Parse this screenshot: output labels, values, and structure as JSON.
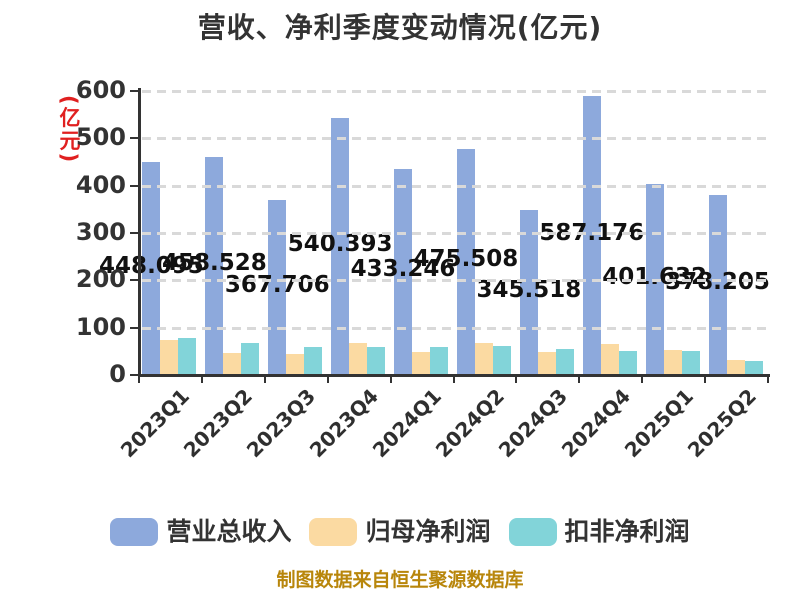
{
  "footer": "制图数据来自恒生聚源数据库",
  "colors": {
    "title_text": "#333333",
    "axis": "#333333",
    "gridline": "#D9D9D9",
    "axis_name": "#E02020",
    "data_label": "#111111",
    "footer_text": "#B8860B",
    "background": "#FFFFFF"
  },
  "chart_data": {
    "type": "bar",
    "title": "营收、净利季度变动情况(亿元)",
    "ylabel": "(亿元)",
    "xlabel": "",
    "categories": [
      "2023Q1",
      "2023Q2",
      "2023Q3",
      "2023Q4",
      "2024Q1",
      "2024Q2",
      "2024Q3",
      "2024Q4",
      "2025Q1",
      "2025Q2"
    ],
    "series": [
      {
        "key": "revenue",
        "name": "营业总收入",
        "color": "#8DA9DC",
        "values": [
          448.095,
          458.528,
          367.706,
          540.393,
          433.246,
          475.508,
          345.518,
          587.176,
          401.632,
          378.205
        ],
        "show_data_labels": true
      },
      {
        "key": "net-profit",
        "name": "归母净利润",
        "color": "#FBDAA2",
        "values": [
          72,
          45,
          43,
          66,
          46,
          65,
          46,
          64,
          50,
          29
        ],
        "show_data_labels": false
      },
      {
        "key": "non-gaap-net-profit",
        "name": "扣非净利润",
        "color": "#82D4D9",
        "values": [
          77,
          65,
          56,
          57,
          58,
          60,
          53,
          48,
          48,
          28
        ],
        "show_data_labels": false
      }
    ],
    "ylim": [
      0,
      600
    ],
    "ytick_step": 100,
    "grid": "dashed-horizontal",
    "x_label_rotation": 45,
    "legend_position": "bottom"
  }
}
